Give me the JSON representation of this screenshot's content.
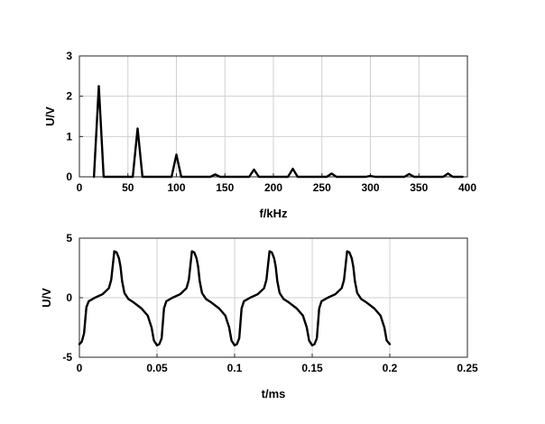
{
  "chart_data": [
    {
      "type": "line",
      "title": "",
      "xlabel": "f/kHz",
      "ylabel": "U/V",
      "xlim": [
        0,
        400
      ],
      "ylim": [
        0,
        3
      ],
      "xticks": [
        0,
        50,
        100,
        150,
        200,
        250,
        300,
        350,
        400
      ],
      "yticks": [
        0,
        1,
        2,
        3
      ],
      "grid": true,
      "series": [
        {
          "x": [
            15,
            20,
            25,
            55,
            60,
            65,
            95,
            100,
            105,
            135,
            140,
            145,
            175,
            180,
            185,
            215,
            220,
            225,
            255,
            260,
            265,
            295,
            300,
            305,
            335,
            340,
            345,
            375,
            380,
            385,
            395
          ],
          "y": [
            0,
            2.25,
            0,
            0,
            1.2,
            0,
            0,
            0.55,
            0,
            0,
            0.06,
            0,
            0,
            0.18,
            0,
            0,
            0.2,
            0,
            0,
            0.08,
            0,
            0,
            0.02,
            0,
            0,
            0.07,
            0,
            0,
            0.08,
            0,
            0
          ]
        }
      ]
    },
    {
      "type": "line",
      "title": "",
      "xlabel": "t/ms",
      "ylabel": "U/V",
      "xlim": [
        0,
        0.25
      ],
      "ylim": [
        -5,
        5
      ],
      "xticks": [
        0,
        0.05,
        0.1,
        0.15,
        0.2,
        0.25
      ],
      "yticks": [
        -5,
        0,
        5
      ],
      "grid": true,
      "series": [
        {
          "x": [
            0,
            0.0015,
            0.003,
            0.0045,
            0.006,
            0.01,
            0.015,
            0.019,
            0.0205,
            0.0225,
            0.024,
            0.0255,
            0.0265,
            0.0275,
            0.029,
            0.0315,
            0.035,
            0.04,
            0.044,
            0.0465,
            0.048,
            0.05,
            0.0515,
            0.053,
            0.0545,
            0.056,
            0.06,
            0.065,
            0.069,
            0.0705,
            0.0725,
            0.074,
            0.0755,
            0.0765,
            0.0775,
            0.079,
            0.0815,
            0.085,
            0.09,
            0.094,
            0.0965,
            0.098,
            0.1,
            0.1015,
            0.103,
            0.1045,
            0.106,
            0.11,
            0.115,
            0.119,
            0.1205,
            0.1225,
            0.124,
            0.1255,
            0.1265,
            0.1275,
            0.129,
            0.1315,
            0.135,
            0.14,
            0.144,
            0.1465,
            0.148,
            0.15,
            0.1515,
            0.153,
            0.1545,
            0.156,
            0.16,
            0.165,
            0.169,
            0.1705,
            0.1725,
            0.174,
            0.1755,
            0.1765,
            0.1775,
            0.179,
            0.1815,
            0.185,
            0.19,
            0.194,
            0.1965,
            0.198,
            0.2
          ],
          "y": [
            -3.9,
            -3.7,
            -3.0,
            -0.8,
            -0.3,
            0.0,
            0.3,
            0.8,
            1.5,
            3.9,
            3.8,
            3.3,
            2.6,
            1.4,
            0.4,
            -0.1,
            -0.4,
            -0.9,
            -1.5,
            -2.5,
            -3.6,
            -4.0,
            -3.9,
            -3.4,
            -0.9,
            -0.3,
            0.0,
            0.3,
            0.8,
            1.5,
            3.9,
            3.8,
            3.3,
            2.6,
            1.4,
            0.4,
            -0.1,
            -0.4,
            -0.9,
            -1.5,
            -2.5,
            -3.6,
            -4.0,
            -3.9,
            -3.4,
            -0.9,
            -0.3,
            0.0,
            0.3,
            0.8,
            1.5,
            3.9,
            3.8,
            3.3,
            2.6,
            1.4,
            0.4,
            -0.1,
            -0.4,
            -0.9,
            -1.5,
            -2.5,
            -3.6,
            -4.0,
            -3.9,
            -3.4,
            -0.9,
            -0.3,
            0.0,
            0.3,
            0.8,
            1.5,
            3.9,
            3.8,
            3.3,
            2.6,
            1.4,
            0.4,
            -0.1,
            -0.4,
            -0.9,
            -1.5,
            -2.5,
            -3.6,
            -3.9
          ]
        }
      ]
    }
  ]
}
